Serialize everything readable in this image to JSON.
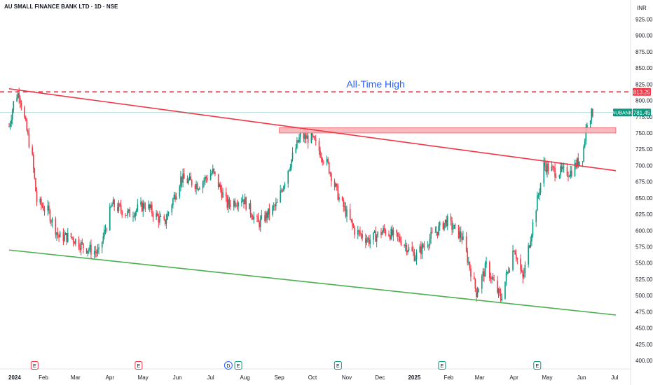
{
  "header": {
    "title": "AU SMALL FINANCE BANK LTD · 1D · NSE"
  },
  "chart_data": {
    "type": "candlestick",
    "title": "AU SMALL FINANCE BANK LTD · 1D · NSE",
    "currency": "INR",
    "symbol": "AUBANK",
    "last_price": "781.45",
    "ath_price": "813.25",
    "ylim": [
      400,
      925
    ],
    "y_ticks": [
      "925.00",
      "900.00",
      "875.00",
      "850.00",
      "825.00",
      "800.00",
      "775.00",
      "750.00",
      "725.00",
      "700.00",
      "675.00",
      "650.00",
      "625.00",
      "600.00",
      "575.00",
      "550.00",
      "525.00",
      "500.00",
      "475.00",
      "450.00",
      "425.00",
      "400.00"
    ],
    "x_labels": [
      "2024",
      "Feb",
      "Mar",
      "Apr",
      "May",
      "Jun",
      "Jul",
      "Aug",
      "Sep",
      "Oct",
      "Nov",
      "Dec",
      "2025",
      "Feb",
      "Mar",
      "Apr",
      "May",
      "Jun",
      "Jul"
    ],
    "x_label_bold": [
      "2024",
      "2025"
    ],
    "price_path": [
      [
        "2024-01-01",
        760
      ],
      [
        "2024-01-06",
        805
      ],
      [
        "2024-01-10",
        812
      ],
      [
        "2024-01-15",
        770
      ],
      [
        "2024-01-22",
        710
      ],
      [
        "2024-01-26",
        645
      ],
      [
        "2024-02-05",
        630
      ],
      [
        "2024-02-15",
        590
      ],
      [
        "2024-02-26",
        590
      ],
      [
        "2024-03-08",
        575
      ],
      [
        "2024-03-22",
        565
      ],
      [
        "2024-04-03",
        640
      ],
      [
        "2024-04-18",
        625
      ],
      [
        "2024-05-03",
        640
      ],
      [
        "2024-05-20",
        610
      ],
      [
        "2024-06-04",
        680
      ],
      [
        "2024-06-20",
        670
      ],
      [
        "2024-07-03",
        690
      ],
      [
        "2024-07-16",
        640
      ],
      [
        "2024-07-30",
        650
      ],
      [
        "2024-08-13",
        610
      ],
      [
        "2024-08-30",
        640
      ],
      [
        "2024-09-10",
        700
      ],
      [
        "2024-09-20",
        745
      ],
      [
        "2024-10-01",
        740
      ],
      [
        "2024-10-15",
        700
      ],
      [
        "2024-10-25",
        650
      ],
      [
        "2024-11-08",
        600
      ],
      [
        "2024-11-21",
        585
      ],
      [
        "2024-12-05",
        600
      ],
      [
        "2024-12-20",
        585
      ],
      [
        "2025-01-02",
        560
      ],
      [
        "2025-01-16",
        590
      ],
      [
        "2025-01-30",
        615
      ],
      [
        "2025-02-13",
        590
      ],
      [
        "2025-02-26",
        505
      ],
      [
        "2025-03-07",
        545
      ],
      [
        "2025-03-20",
        495
      ],
      [
        "2025-04-01",
        575
      ],
      [
        "2025-04-09",
        525
      ],
      [
        "2025-04-18",
        610
      ],
      [
        "2025-04-28",
        700
      ],
      [
        "2025-05-09",
        690
      ],
      [
        "2025-05-22",
        690
      ],
      [
        "2025-06-02",
        715
      ],
      [
        "2025-06-06",
        770
      ],
      [
        "2025-06-11",
        781
      ]
    ],
    "lines": [
      {
        "name": "upper-trendline",
        "color": "#f23645",
        "from": [
          "2024-01-01",
          818
        ],
        "to": [
          "2025-07-02",
          692
        ]
      },
      {
        "name": "lower-trendline",
        "color": "#4caf50",
        "from": [
          "2024-01-01",
          570
        ],
        "to": [
          "2025-07-02",
          470
        ]
      }
    ],
    "ath_line": {
      "value": 813.25,
      "color": "#f23645",
      "style": "dashed"
    },
    "zone": {
      "from": 750,
      "to": 758,
      "x_start": "2024-09-01",
      "x_end": "2025-07-02",
      "fill": "#f7b3b8",
      "stroke": "#f23645"
    },
    "last_price_line": {
      "value": 781.45,
      "color": "#089981"
    },
    "colors": {
      "up": "#089981",
      "down": "#f23645",
      "ath_badge": "#f23645",
      "price_badge": "#089981"
    },
    "event_markers": [
      {
        "date": "2024-01-24",
        "label": "E",
        "color": "#f23645"
      },
      {
        "date": "2024-04-27",
        "label": "E",
        "color": "#f23645"
      },
      {
        "date": "2024-07-17",
        "label": "D",
        "color": "#2962ff"
      },
      {
        "date": "2024-07-26",
        "label": "E",
        "color": "#089981"
      },
      {
        "date": "2024-10-24",
        "label": "E",
        "color": "#089981"
      },
      {
        "date": "2025-01-26",
        "label": "E",
        "color": "#089981"
      },
      {
        "date": "2025-04-22",
        "label": "E",
        "color": "#089981"
      }
    ],
    "annotations": [
      {
        "text": "All-Time High",
        "date": "2024-11-27",
        "value": 820
      }
    ]
  }
}
